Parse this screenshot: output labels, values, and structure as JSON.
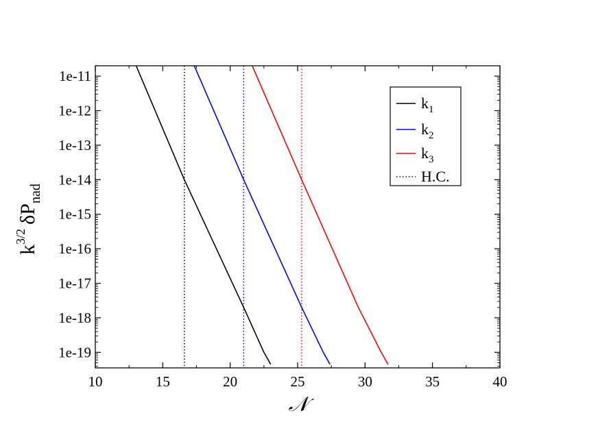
{
  "chart_data": {
    "type": "line",
    "xlabel": "𝒩",
    "ylabel": {
      "base": "k",
      "sup": "3/2",
      "main": "δP",
      "sub": "nad"
    },
    "xlim": [
      10,
      40
    ],
    "ylim_log10": [
      -19.45,
      -10.7
    ],
    "y_scale": "log",
    "x_ticks": [
      "10",
      "15",
      "20",
      "25",
      "30",
      "35",
      "40"
    ],
    "y_ticks": [
      "1e-11",
      "1e-12",
      "1e-13",
      "1e-14",
      "1e-15",
      "1e-16",
      "1e-17",
      "1e-18",
      "1e-19"
    ],
    "grid": false,
    "legend_position": "top-right",
    "series": [
      {
        "name": "k",
        "sub": "1",
        "color": "#000000",
        "style": "solid",
        "x": [
          12.7,
          16.6,
          21.0,
          22.5,
          23.0
        ],
        "y": [
          4e-11,
          1e-14,
          2e-18,
          1e-19,
          4.5e-20
        ]
      },
      {
        "name": "k",
        "sub": "2",
        "color": "#0000ff",
        "style": "solid",
        "x": [
          17.0,
          21.0,
          25.3,
          26.9,
          27.4
        ],
        "y": [
          4e-11,
          1e-14,
          2e-18,
          1e-19,
          4.5e-20
        ]
      },
      {
        "name": "k",
        "sub": "3",
        "color": "#ff0000",
        "style": "solid",
        "x": [
          21.3,
          25.3,
          29.5,
          31.2,
          31.7
        ],
        "y": [
          4e-11,
          1e-14,
          2e-18,
          1e-19,
          4.5e-20
        ]
      }
    ],
    "horizon_crossing": {
      "name": "H.C.",
      "style": "dotted",
      "lines": [
        {
          "x": 16.6,
          "color": "#000000"
        },
        {
          "x": 21.0,
          "color": "#0000ff"
        },
        {
          "x": 25.3,
          "color": "#ff0000"
        }
      ]
    }
  }
}
